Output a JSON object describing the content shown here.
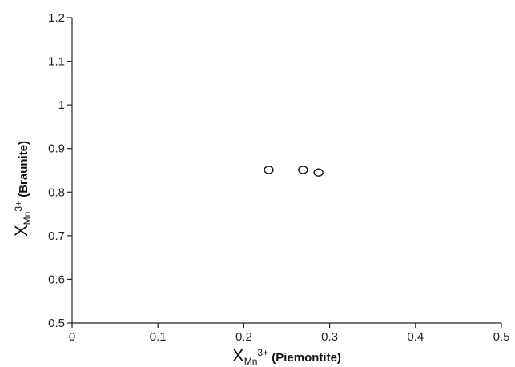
{
  "chart_data": {
    "type": "scatter",
    "xlabel": {
      "main": "X",
      "sub": "Mn",
      "sup": "3+",
      "rest": " (Piemontite)"
    },
    "ylabel": {
      "main": "X",
      "sub": "Mn",
      "sup": "3+",
      "rest": " (Braunite)"
    },
    "xlim": [
      0,
      0.5
    ],
    "ylim": [
      0.5,
      1.2
    ],
    "xticks": [
      {
        "value": 0,
        "label": "0"
      },
      {
        "value": 0.1,
        "label": "0.1"
      },
      {
        "value": 0.2,
        "label": "0.2"
      },
      {
        "value": 0.3,
        "label": "0.3"
      },
      {
        "value": 0.4,
        "label": "0.4"
      },
      {
        "value": 0.5,
        "label": "0.5"
      }
    ],
    "yticks": [
      {
        "value": 0.5,
        "label": "0.5"
      },
      {
        "value": 0.6,
        "label": "0.6"
      },
      {
        "value": 0.7,
        "label": "0.7"
      },
      {
        "value": 0.8,
        "label": "0.8"
      },
      {
        "value": 0.9,
        "label": "0.9"
      },
      {
        "value": 1.0,
        "label": "1"
      },
      {
        "value": 1.1,
        "label": "1.1"
      },
      {
        "value": 1.2,
        "label": "1.2"
      }
    ],
    "grid": false,
    "marker": "open-circle",
    "points": [
      {
        "x": 0.229,
        "y": 0.851
      },
      {
        "x": 0.269,
        "y": 0.851
      },
      {
        "x": 0.287,
        "y": 0.845
      }
    ]
  }
}
